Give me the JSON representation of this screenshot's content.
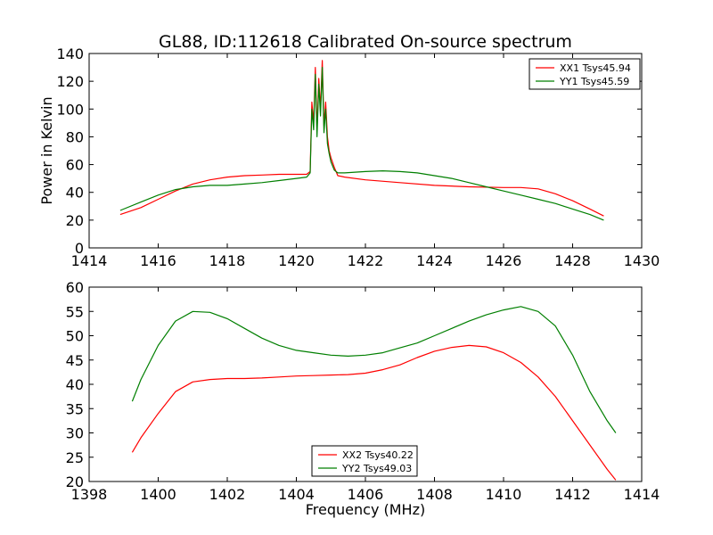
{
  "figure": {
    "title": "GL88, ID:112618 Calibrated On-source spectrum"
  },
  "chart_data": [
    {
      "type": "line",
      "title": "GL88, ID:112618 Calibrated On-source spectrum",
      "xlabel": "",
      "ylabel": "Power in Kelvin",
      "xlim": [
        1414,
        1430
      ],
      "ylim": [
        0,
        140
      ],
      "xticks": [
        "1414",
        "1416",
        "1418",
        "1420",
        "1422",
        "1424",
        "1426",
        "1428",
        "1430"
      ],
      "yticks": [
        "0",
        "20",
        "40",
        "60",
        "80",
        "100",
        "120",
        "140"
      ],
      "grid": false,
      "legend": "top-right",
      "series": [
        {
          "name": "XX1 Tsys45.94",
          "color": "#ff0000",
          "x": [
            1414.9,
            1415.5,
            1416.0,
            1416.5,
            1417.0,
            1417.5,
            1418.0,
            1418.5,
            1419.0,
            1419.5,
            1420.0,
            1420.3,
            1420.4,
            1420.45,
            1420.5,
            1420.55,
            1420.6,
            1420.65,
            1420.7,
            1420.75,
            1420.8,
            1420.85,
            1420.9,
            1420.95,
            1421.0,
            1421.1,
            1421.2,
            1421.4,
            1422.0,
            1423.0,
            1424.0,
            1425.0,
            1426.0,
            1426.5,
            1427.0,
            1427.5,
            1428.0,
            1428.5,
            1428.9
          ],
          "values": [
            24,
            29,
            35,
            41,
            46,
            49,
            51,
            52,
            52.5,
            53,
            53,
            53,
            55,
            105,
            90,
            130,
            85,
            122,
            100,
            135,
            88,
            105,
            80,
            70,
            65,
            58,
            52,
            51,
            49,
            47,
            45,
            44,
            43.5,
            43.5,
            42.5,
            39,
            34,
            28,
            23
          ]
        },
        {
          "name": "YY1 Tsys45.59",
          "color": "#007f00",
          "x": [
            1414.9,
            1415.5,
            1416.0,
            1416.5,
            1417.0,
            1417.5,
            1418.0,
            1418.5,
            1419.0,
            1419.5,
            1420.0,
            1420.3,
            1420.4,
            1420.45,
            1420.5,
            1420.55,
            1420.6,
            1420.65,
            1420.7,
            1420.75,
            1420.8,
            1420.85,
            1420.9,
            1420.95,
            1421.0,
            1421.1,
            1421.2,
            1421.4,
            1422.0,
            1422.5,
            1423.0,
            1423.5,
            1424.0,
            1424.5,
            1425.0,
            1425.5,
            1426.0,
            1426.5,
            1427.0,
            1427.5,
            1428.0,
            1428.5,
            1428.9
          ],
          "values": [
            27,
            33,
            38,
            42,
            44,
            45,
            45,
            46,
            47,
            48.5,
            50,
            51,
            54,
            100,
            85,
            125,
            80,
            118,
            95,
            130,
            83,
            100,
            75,
            68,
            62,
            56,
            54,
            54,
            55,
            55.5,
            55,
            54,
            52,
            50,
            47,
            44,
            41,
            38,
            35,
            32,
            28,
            24,
            20
          ]
        }
      ]
    },
    {
      "type": "line",
      "title": "",
      "xlabel": "Frequency (MHz)",
      "ylabel": "",
      "xlim": [
        1398,
        1414
      ],
      "ylim": [
        20,
        60
      ],
      "xticks": [
        "1398",
        "1400",
        "1402",
        "1404",
        "1406",
        "1408",
        "1410",
        "1412",
        "1414"
      ],
      "yticks": [
        "20",
        "25",
        "30",
        "35",
        "40",
        "45",
        "50",
        "55",
        "60"
      ],
      "grid": false,
      "legend": "bottom-center",
      "series": [
        {
          "name": "XX2 Tsys40.22",
          "color": "#ff0000",
          "x": [
            1399.25,
            1399.5,
            1400.0,
            1400.5,
            1401.0,
            1401.5,
            1402.0,
            1402.5,
            1403.0,
            1403.5,
            1404.0,
            1404.5,
            1405.0,
            1405.5,
            1406.0,
            1406.5,
            1407.0,
            1407.5,
            1408.0,
            1408.5,
            1409.0,
            1409.5,
            1410.0,
            1410.5,
            1411.0,
            1411.5,
            1412.0,
            1412.5,
            1413.0,
            1413.25
          ],
          "values": [
            26,
            29,
            34,
            38.5,
            40.5,
            41,
            41.2,
            41.2,
            41.3,
            41.5,
            41.7,
            41.8,
            41.9,
            42.0,
            42.3,
            43.0,
            44.0,
            45.5,
            46.8,
            47.6,
            48.0,
            47.7,
            46.5,
            44.5,
            41.5,
            37.5,
            32.5,
            27.5,
            22.5,
            20.3
          ]
        },
        {
          "name": "YY2 Tsys49.03",
          "color": "#007f00",
          "x": [
            1399.25,
            1399.5,
            1400.0,
            1400.5,
            1401.0,
            1401.5,
            1402.0,
            1402.5,
            1403.0,
            1403.5,
            1404.0,
            1404.5,
            1405.0,
            1405.5,
            1406.0,
            1406.5,
            1407.0,
            1407.5,
            1408.0,
            1408.5,
            1409.0,
            1409.5,
            1410.0,
            1410.5,
            1411.0,
            1411.5,
            1412.0,
            1412.5,
            1413.0,
            1413.25
          ],
          "values": [
            36.5,
            41,
            48,
            53,
            55,
            54.8,
            53.5,
            51.5,
            49.5,
            48,
            47,
            46.5,
            46,
            45.8,
            46,
            46.5,
            47.5,
            48.5,
            50,
            51.5,
            53,
            54.3,
            55.3,
            56,
            55,
            52,
            46,
            38.5,
            32.5,
            30
          ]
        }
      ]
    }
  ]
}
